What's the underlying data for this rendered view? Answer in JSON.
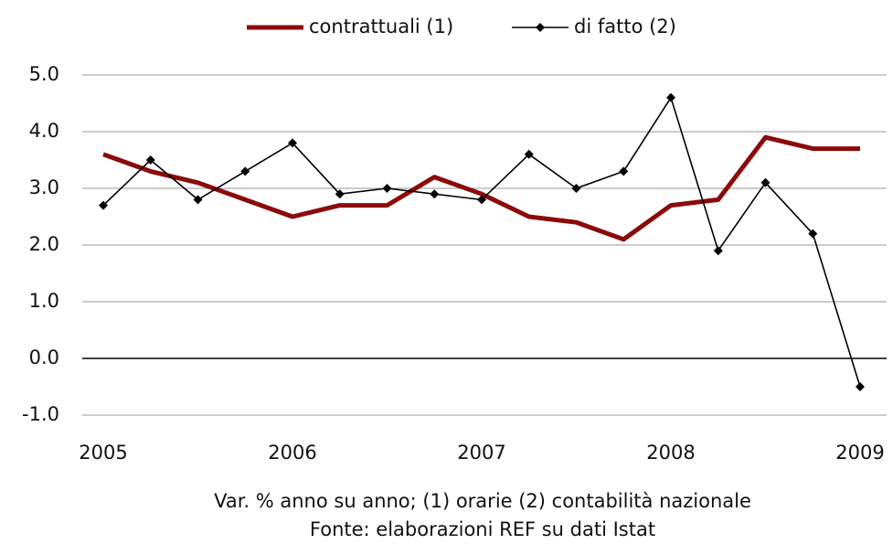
{
  "chart_data": {
    "type": "line",
    "categories": [
      "2005",
      null,
      null,
      null,
      "2006",
      null,
      null,
      null,
      "2007",
      null,
      null,
      null,
      "2008",
      null,
      null,
      null,
      "2009"
    ],
    "series": [
      {
        "name": "contrattuali (1)",
        "color": "#8b0a0a",
        "values": [
          3.6,
          3.3,
          3.1,
          2.8,
          2.5,
          2.7,
          2.7,
          3.2,
          2.9,
          2.5,
          2.4,
          2.1,
          2.7,
          2.8,
          3.9,
          3.7,
          3.7
        ]
      },
      {
        "name": "di fatto (2)",
        "color": "#000000",
        "marker": "diamond",
        "values": [
          2.7,
          3.5,
          2.8,
          3.3,
          3.8,
          2.9,
          3.0,
          2.9,
          2.8,
          3.6,
          3.0,
          3.3,
          4.6,
          1.9,
          3.1,
          2.2,
          -0.5
        ]
      }
    ],
    "ylim": [
      -1,
      5
    ],
    "yticks": [
      {
        "value": -1,
        "label": "-1.0"
      },
      {
        "value": 0,
        "label": "0.0"
      },
      {
        "value": 1,
        "label": "1.0"
      },
      {
        "value": 2,
        "label": "2.0"
      },
      {
        "value": 3,
        "label": "3.0"
      },
      {
        "value": 4,
        "label": "4.0"
      },
      {
        "value": 5,
        "label": "5.0"
      }
    ],
    "grid": true,
    "legend": "top",
    "notes": [
      "Var. % anno su anno; (1) orarie (2) contabilità nazionale",
      "Fonte: elaborazioni REF su dati Istat"
    ]
  }
}
